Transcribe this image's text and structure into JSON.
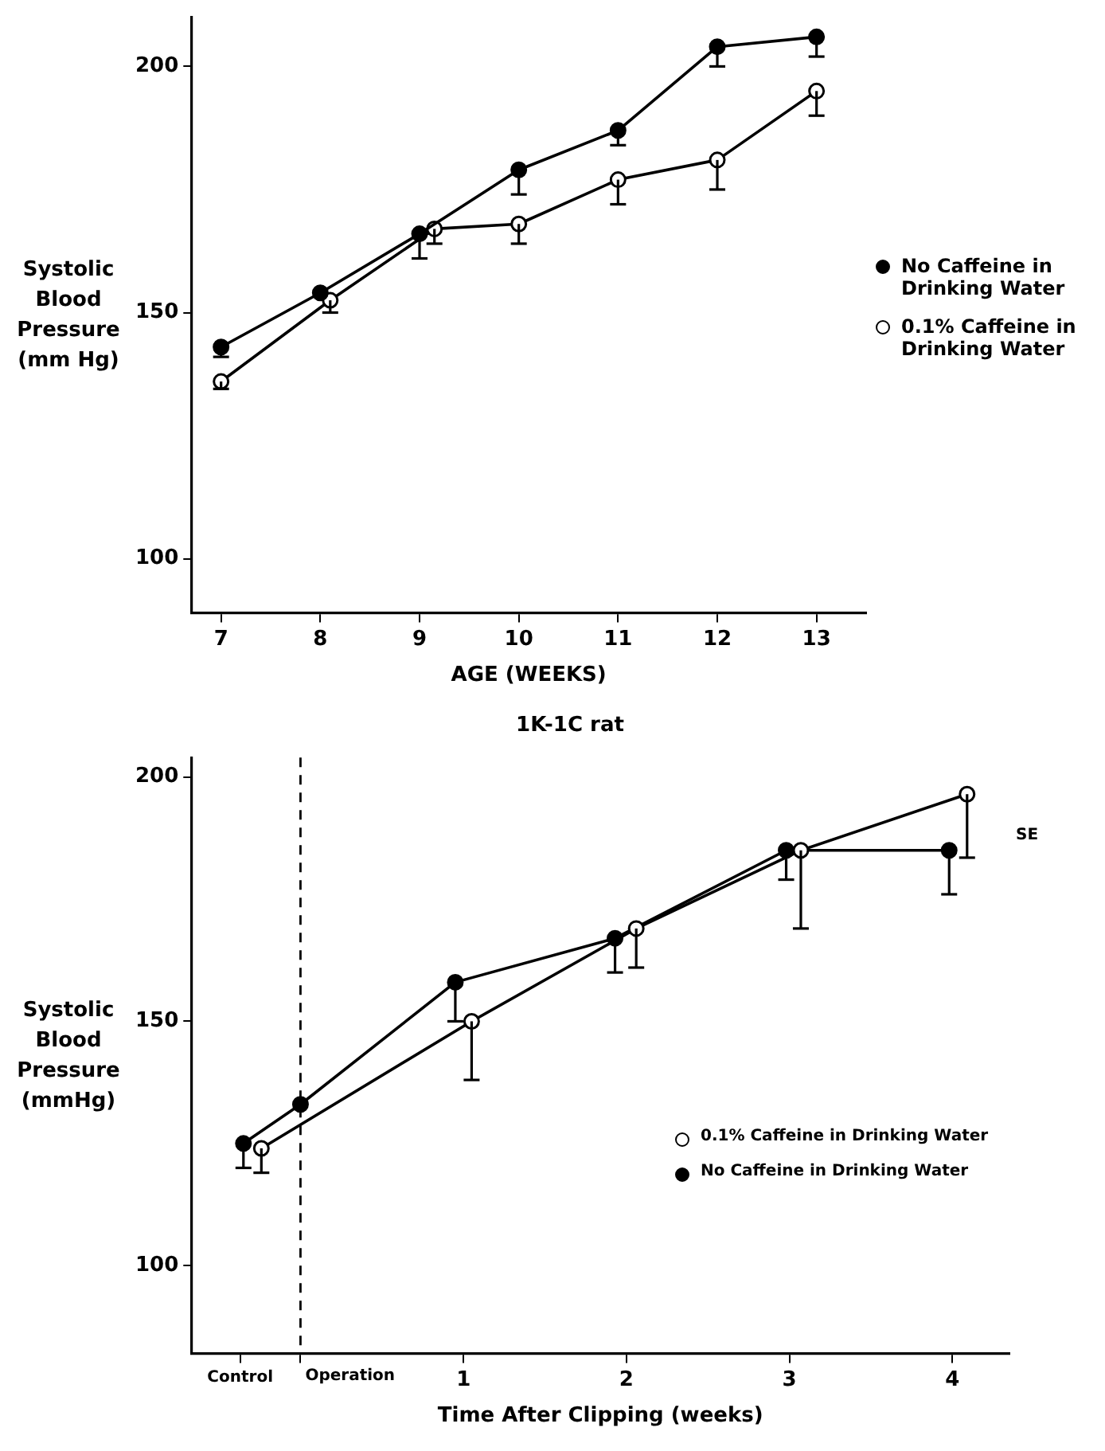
{
  "chart_data": [
    {
      "type": "line",
      "xlabel": "AGE (WEEKS)",
      "ylabel": "Systolic Blood Pressure (mm Hg)",
      "xlim": [
        6.7,
        13.5
      ],
      "xticks": [
        7,
        8,
        9,
        10,
        11,
        12,
        13
      ],
      "ylim": [
        89,
        210
      ],
      "yticks": [
        100,
        150,
        200
      ],
      "grid": false,
      "legend": "right",
      "series": [
        {
          "name": "No Caffeine in Drinking Water",
          "color": "#000000",
          "marker": "circle",
          "x": [
            7,
            8,
            9,
            10,
            11,
            12,
            13
          ],
          "values": [
            143,
            154,
            166,
            179,
            187,
            204,
            206
          ],
          "errors": [
            [
              141,
              143
            ],
            null,
            [
              161,
              166
            ],
            [
              174,
              179
            ],
            [
              184,
              187
            ],
            [
              200,
              204
            ],
            [
              202,
              206
            ]
          ]
        },
        {
          "name": "0.1% Caffeine in Drinking Water",
          "color": "#000000",
          "marker": "circle-open",
          "x": [
            7,
            8.1,
            9.15,
            10,
            11,
            12,
            13
          ],
          "values": [
            136,
            152.5,
            167,
            168,
            177,
            181,
            195
          ],
          "errors": [
            [
              134.5,
              136
            ],
            [
              150,
              152.5
            ],
            [
              164,
              167
            ],
            [
              164,
              168
            ],
            [
              172,
              177
            ],
            [
              175,
              181
            ],
            [
              190,
              195
            ]
          ]
        }
      ]
    },
    {
      "type": "line",
      "title": "1K-1C rat",
      "xlabel": "Time After Clipping (weeks)",
      "ylabel": "Systolic Blood Pressure (mmHg)",
      "xlim": [
        -0.67,
        4.35
      ],
      "xticks": [
        {
          "value": -0.37,
          "label": "Control"
        },
        {
          "value": 0,
          "label": null
        },
        1,
        2,
        3,
        4
      ],
      "ylim": [
        82,
        204
      ],
      "yticks": [
        100,
        150,
        200
      ],
      "grid": false,
      "legend": "bottom right",
      "ref_lines": [
        {
          "axis": "x",
          "value": 0,
          "label": "Operation",
          "line_style": "dashed"
        }
      ],
      "annotations": [
        "SE"
      ],
      "series": [
        {
          "name": "0.1% Caffeine in Drinking Water",
          "color": "#000000",
          "marker": "circle-open",
          "x": [
            -0.24,
            1.05,
            2.06,
            3.07,
            4.09
          ],
          "values": [
            124,
            150,
            169,
            185,
            196.5
          ],
          "errors": [
            [
              119,
              124
            ],
            [
              138,
              150
            ],
            [
              161,
              169
            ],
            [
              169,
              185
            ],
            [
              183.5,
              196.5
            ]
          ]
        },
        {
          "name": "No Caffeine in Drinking Water",
          "color": "#000000",
          "marker": "circle",
          "x": [
            -0.35,
            0,
            0.95,
            1.93,
            2.98,
            3.98
          ],
          "values": [
            125,
            133,
            158,
            167,
            185,
            185
          ],
          "errors": [
            [
              120,
              125
            ],
            null,
            [
              150,
              158
            ],
            [
              160,
              167
            ],
            [
              179,
              185
            ],
            [
              176,
              185
            ]
          ]
        }
      ]
    }
  ]
}
